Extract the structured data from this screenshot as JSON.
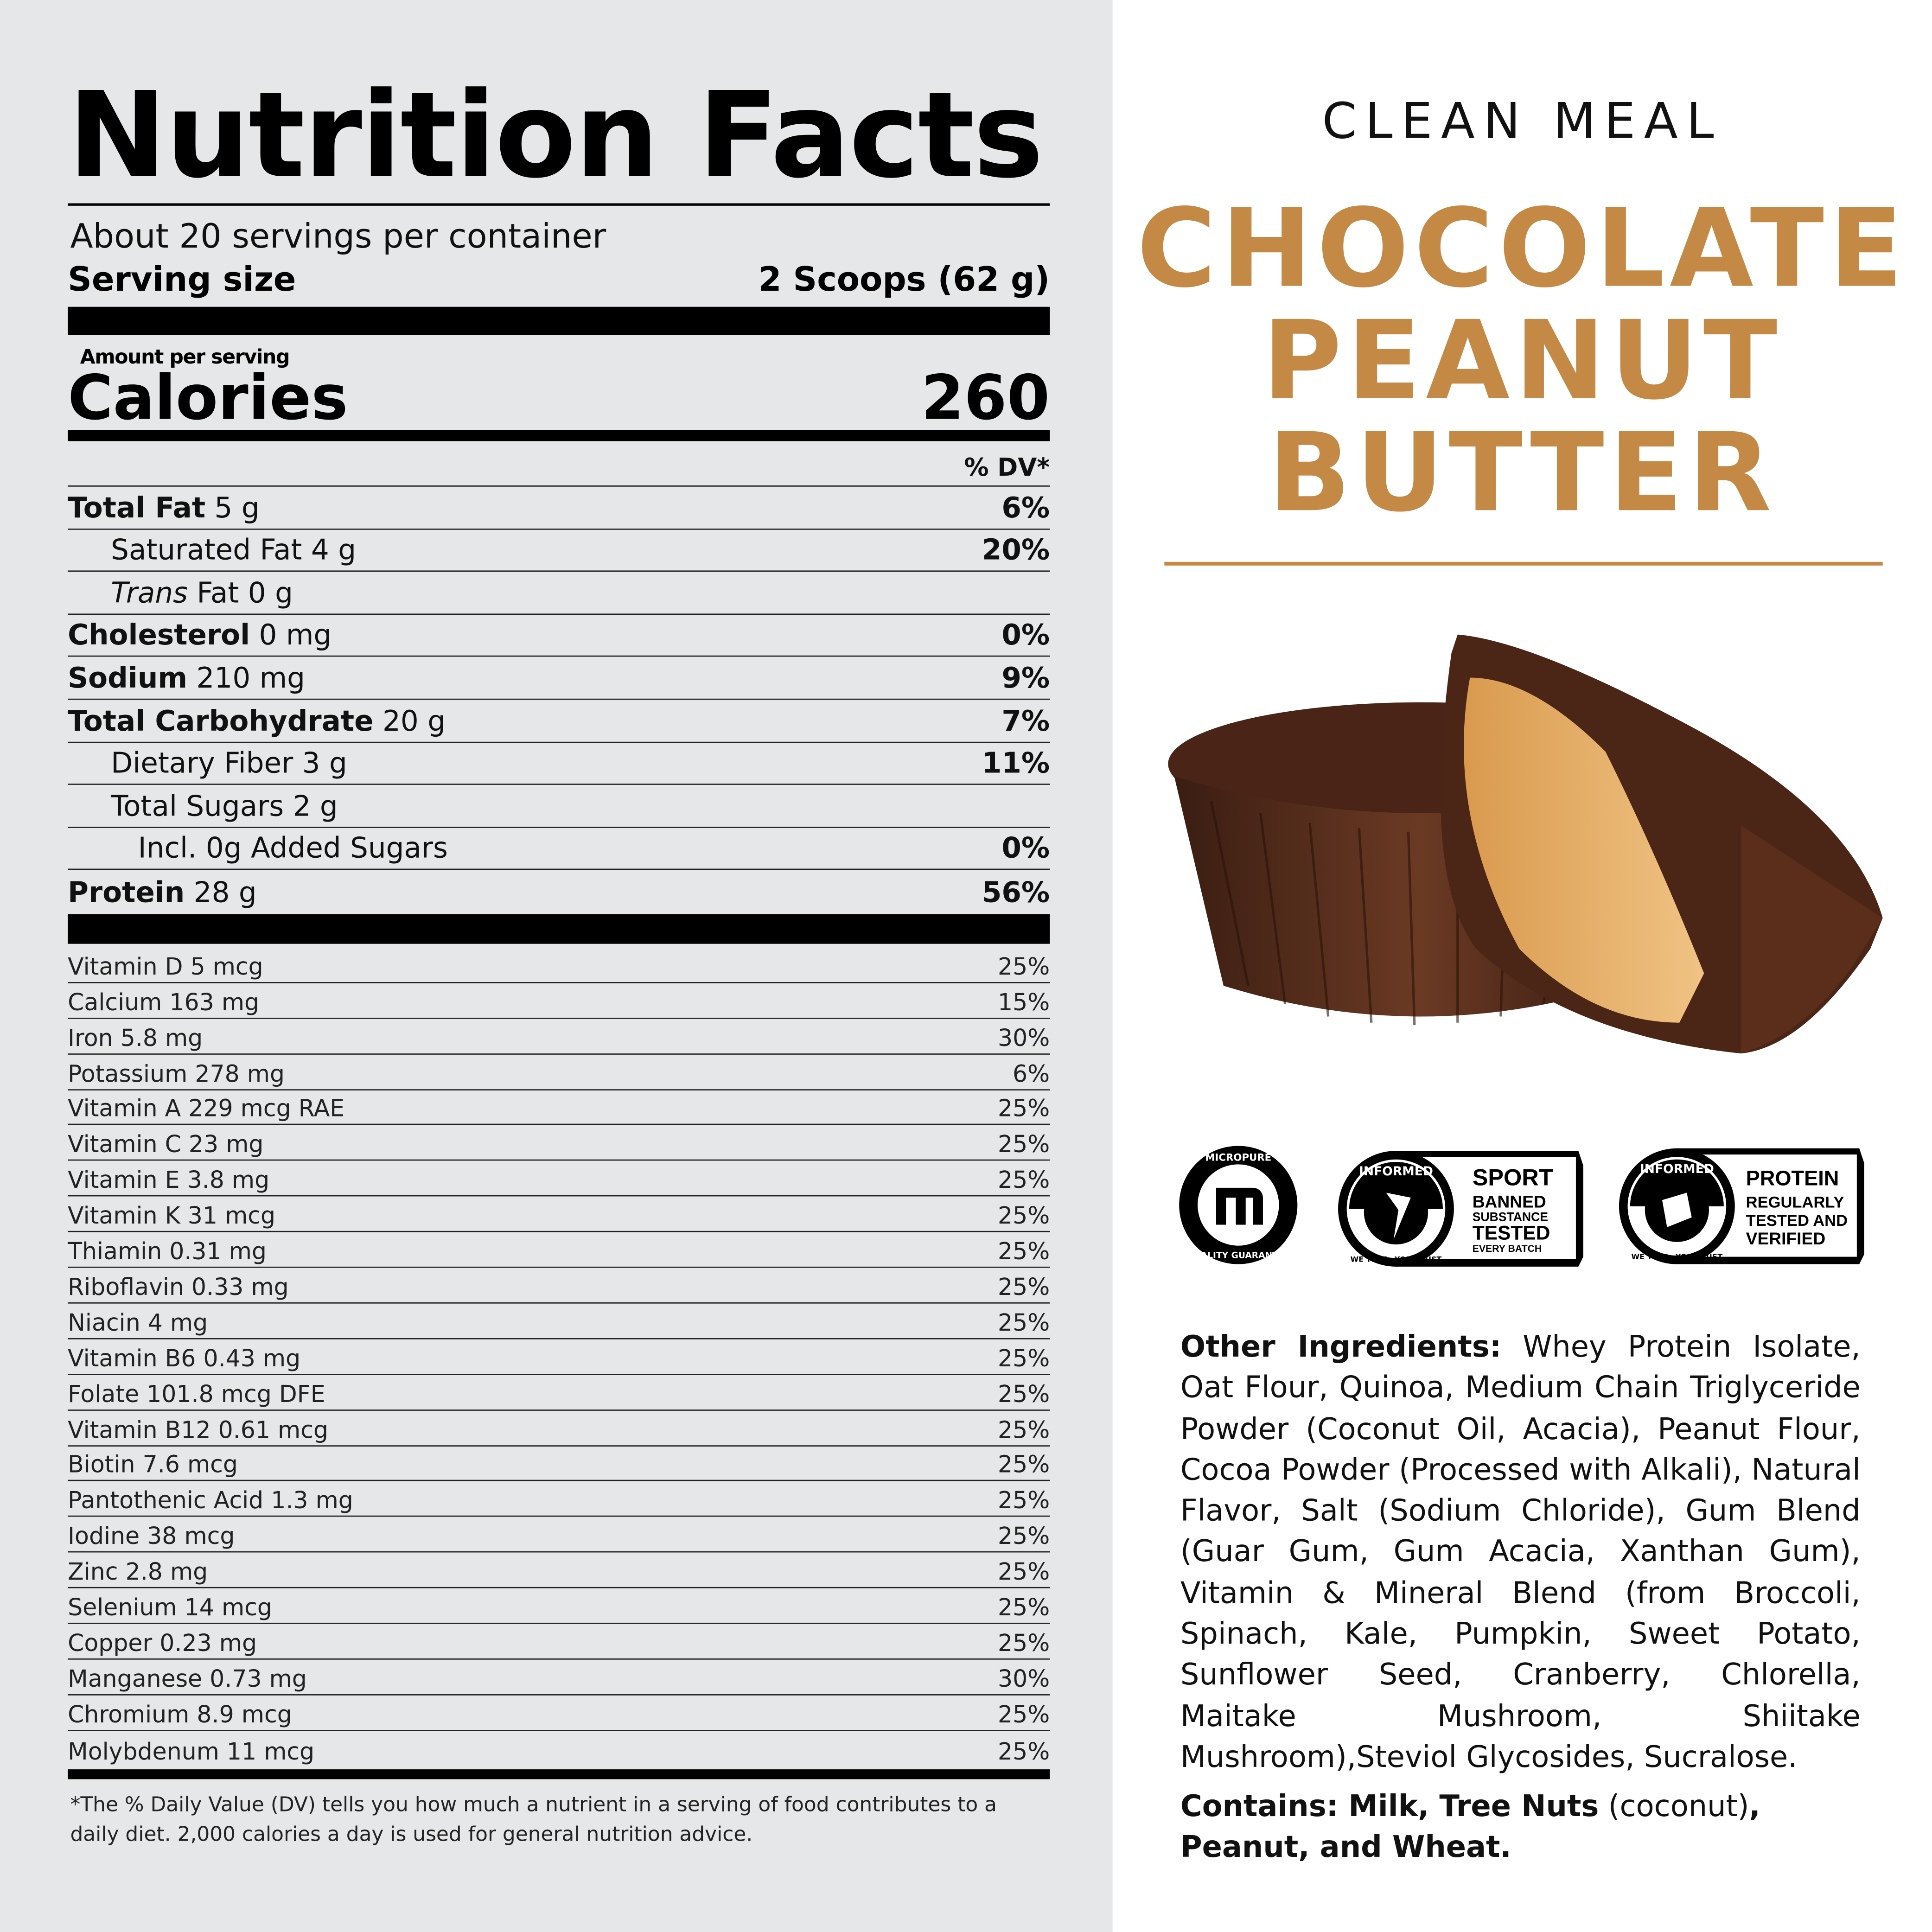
{
  "label": {
    "title": "Nutrition Facts",
    "servings": "About 20 servings per container",
    "serving_size_label": "Serving size",
    "serving_size_value": "2 Scoops (62 g)",
    "amount_per_serving": "Amount per serving",
    "calories_label": "Calories",
    "calories_value": "260",
    "dv_header": "% DV*",
    "nutrients": [
      {
        "name": "Total Fat",
        "amount": "5 g",
        "dv": "6%",
        "bold": true,
        "indent": 0
      },
      {
        "name": "Saturated Fat",
        "amount": "4 g",
        "dv": "20%",
        "bold": false,
        "indent": 1
      },
      {
        "name": "Trans",
        "amount": "Fat 0 g",
        "dv": "",
        "bold": false,
        "indent": 1
      },
      {
        "name": "Cholesterol",
        "amount": "0 mg",
        "dv": "0%",
        "bold": true,
        "indent": 0
      },
      {
        "name": "Sodium",
        "amount": "210 mg",
        "dv": "9%",
        "bold": true,
        "indent": 0
      },
      {
        "name": "Total Carbohydrate",
        "amount": "20 g",
        "dv": "7%",
        "bold": true,
        "indent": 0
      },
      {
        "name": "Dietary Fiber",
        "amount": "3 g",
        "dv": "11%",
        "bold": false,
        "indent": 1
      },
      {
        "name": "Total Sugars",
        "amount": "2 g",
        "dv": "",
        "bold": false,
        "indent": 1
      },
      {
        "name": "Incl. 0g Added Sugars",
        "amount": "",
        "dv": "0%",
        "bold": false,
        "indent": 2
      },
      {
        "name": "Protein",
        "amount": "28 g",
        "dv": "56%",
        "bold": true,
        "indent": 0
      }
    ],
    "vitamins": [
      {
        "name": "Vitamin D 5 mcg",
        "dv": "25%"
      },
      {
        "name": "Calcium 163 mg",
        "dv": "15%"
      },
      {
        "name": "Iron 5.8 mg",
        "dv": "30%"
      },
      {
        "name": "Potassium 278 mg",
        "dv": "6%"
      },
      {
        "name": "Vitamin A 229 mcg RAE",
        "dv": "25%"
      },
      {
        "name": "Vitamin C 23 mg",
        "dv": "25%"
      },
      {
        "name": "Vitamin E 3.8 mg",
        "dv": "25%"
      },
      {
        "name": "Vitamin K 31 mcg",
        "dv": "25%"
      },
      {
        "name": "Thiamin 0.31 mg",
        "dv": "25%"
      },
      {
        "name": "Riboflavin 0.33 mg",
        "dv": "25%"
      },
      {
        "name": "Niacin 4 mg",
        "dv": "25%"
      },
      {
        "name": "Vitamin B6 0.43 mg",
        "dv": "25%"
      },
      {
        "name": "Folate 101.8 mcg DFE",
        "dv": "25%"
      },
      {
        "name": "Vitamin B12 0.61 mcg",
        "dv": "25%"
      },
      {
        "name": "Biotin 7.6 mcg",
        "dv": "25%"
      },
      {
        "name": "Pantothenic Acid 1.3 mg",
        "dv": "25%"
      },
      {
        "name": "Iodine 38 mcg",
        "dv": "25%"
      },
      {
        "name": "Zinc 2.8 mg",
        "dv": "25%"
      },
      {
        "name": "Selenium 14 mcg",
        "dv": "25%"
      },
      {
        "name": "Copper 0.23 mg",
        "dv": "25%"
      },
      {
        "name": "Manganese 0.73 mg",
        "dv": "30%"
      },
      {
        "name": "Chromium 8.9 mcg",
        "dv": "25%"
      },
      {
        "name": "Molybdenum 11 mcg",
        "dv": "25%"
      }
    ],
    "footnote": "*The % Daily Value (DV) tells you how much a nutrient in a serving of food contributes to a daily diet. 2,000 calories a day is used for general nutrition advice."
  },
  "product": {
    "brand": "CLEAN MEAL",
    "flavor_lines": [
      "CHOCOLATE",
      "PEANUT",
      "BUTTER"
    ],
    "accent_color": "#c48a45"
  },
  "badges": {
    "micropure": {
      "top": "MICROPURE",
      "bottom": "QUALITY GUARANTEE"
    },
    "sport": {
      "ring_top": "INFORMED",
      "ring_bottom": "WE TEST · YOU TRUST",
      "lines": [
        "SPORT",
        "BANNED",
        "SUBSTANCE",
        "TESTED",
        "EVERY BATCH"
      ]
    },
    "protein": {
      "ring_top": "INFORMED",
      "ring_bottom": "WE TEST · YOU TRUST",
      "lines": [
        "PROTEIN",
        "REGULARLY",
        "TESTED AND",
        "VERIFIED"
      ]
    }
  },
  "ingredients": {
    "label": "Other Ingredients:",
    "text": "Whey Protein Isolate, Oat Flour, Quinoa, Medium Chain Triglyceride Powder (Coconut Oil, Acacia), Peanut Flour, Cocoa Powder (Processed with Alkali), Natural Flavor, Salt (Sodium Chloride), Gum Blend (Guar Gum, Gum Acacia, Xanthan Gum), Vitamin & Mineral Blend (from Broccoli, Spinach, Kale, Pumpkin, Sweet Potato, Sunflower Seed, Cranberry, Chlorella, Maitake Mushroom, Shiitake Mushroom),Steviol Glycosides, Sucralose.",
    "contains_label": "Contains: Milk, Tree Nuts",
    "contains_paren": "(coconut)",
    "contains_rest": ", Peanut, and Wheat."
  }
}
